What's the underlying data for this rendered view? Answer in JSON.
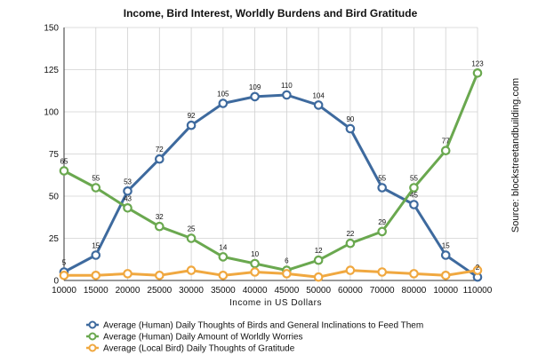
{
  "chart_data": {
    "type": "line",
    "title": "Income, Bird Interest, Worldly Burdens and Bird Gratitude",
    "xlabel": "Income in US Dollars",
    "ylabel": "",
    "ylim": [
      0,
      150
    ],
    "yticks": [
      "0",
      "25",
      "50",
      "75",
      "100",
      "125",
      "150"
    ],
    "categories": [
      "10000",
      "15000",
      "20000",
      "25000",
      "30000",
      "35000",
      "40000",
      "45000",
      "50000",
      "60000",
      "70000",
      "80000",
      "10000",
      "110000"
    ],
    "grid": true,
    "legend_placement": "bottom",
    "source": "Source: blockstreetandbuilding.com",
    "series": [
      {
        "name": "Average (Human) Daily Thoughts of Birds and General Inclinations to Feed Them",
        "color": "#3e6a9e",
        "values": [
          5,
          15,
          53,
          72,
          92,
          105,
          109,
          110,
          104,
          90,
          55,
          45,
          15,
          2
        ],
        "labels": [
          "5",
          "15",
          "53",
          "72",
          "92",
          "105",
          "109",
          "110",
          "104",
          "90",
          "55",
          "45",
          "15",
          "2"
        ]
      },
      {
        "name": "Average (Human) Daily Amount of Worldly Worries",
        "color": "#6aa84f",
        "values": [
          65,
          55,
          43,
          32,
          25,
          14,
          10,
          6,
          12,
          22,
          29,
          55,
          77,
          123
        ],
        "labels": [
          "65",
          "55",
          "43",
          "32",
          "25",
          "14",
          "10",
          "6",
          "12",
          "22",
          "29",
          "55",
          "77",
          "123"
        ]
      },
      {
        "name": "Average (Local Bird) Daily Thoughts of Gratitude",
        "color": "#f0a840",
        "values": [
          3,
          3,
          4,
          3,
          6,
          3,
          5,
          4,
          2,
          6,
          5,
          4,
          3,
          6
        ],
        "labels": []
      }
    ]
  }
}
